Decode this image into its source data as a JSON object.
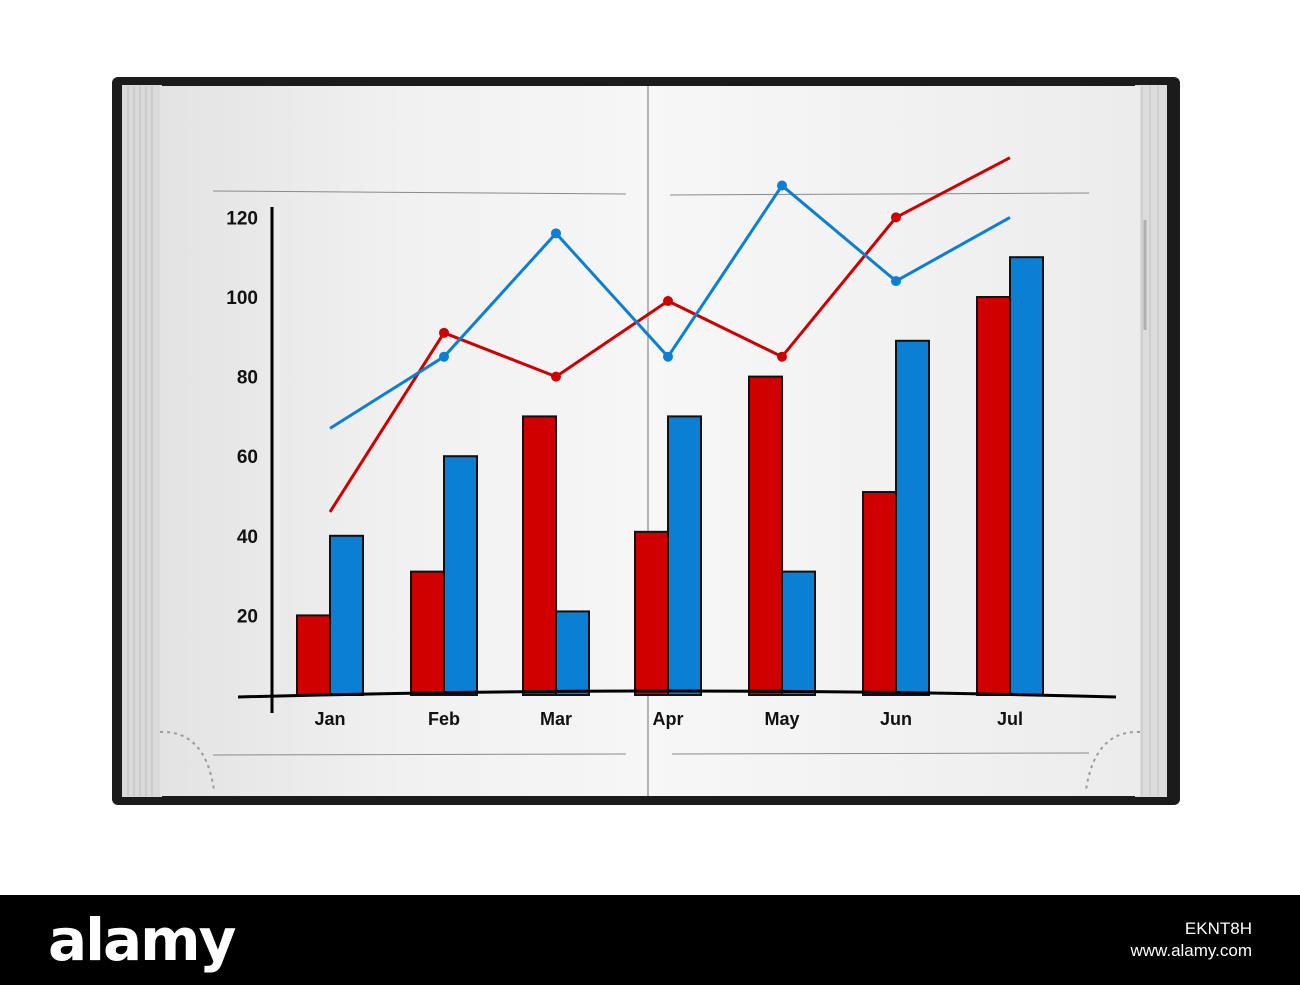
{
  "watermark": {
    "brand": "alamy",
    "image_id": "EKNT8H",
    "site": "www.alamy.com"
  },
  "colors": {
    "series_red": "#d00000",
    "series_blue": "#0a7fd4",
    "axis": "#000000"
  },
  "chart_data": {
    "type": "bar",
    "categories": [
      "Jan",
      "Feb",
      "Mar",
      "Apr",
      "May",
      "Jun",
      "Jul"
    ],
    "series": [
      {
        "color": "#d00000",
        "values": [
          20,
          31,
          70,
          41,
          80,
          51,
          100
        ]
      },
      {
        "color": "#0a7fd4",
        "values": [
          40,
          60,
          21,
          70,
          31,
          89,
          110
        ]
      }
    ],
    "lines": [
      {
        "color": "#d00000",
        "values": [
          46,
          91,
          80,
          99,
          85,
          120,
          135
        ]
      },
      {
        "color": "#0a7fd4",
        "values": [
          67,
          85,
          116,
          85,
          128,
          104,
          120
        ]
      }
    ],
    "title": "",
    "xlabel": "",
    "ylabel": "",
    "yticks": [
      20,
      40,
      60,
      80,
      100,
      120
    ],
    "ylim": [
      0,
      130
    ],
    "grid": false,
    "legend": "none"
  }
}
